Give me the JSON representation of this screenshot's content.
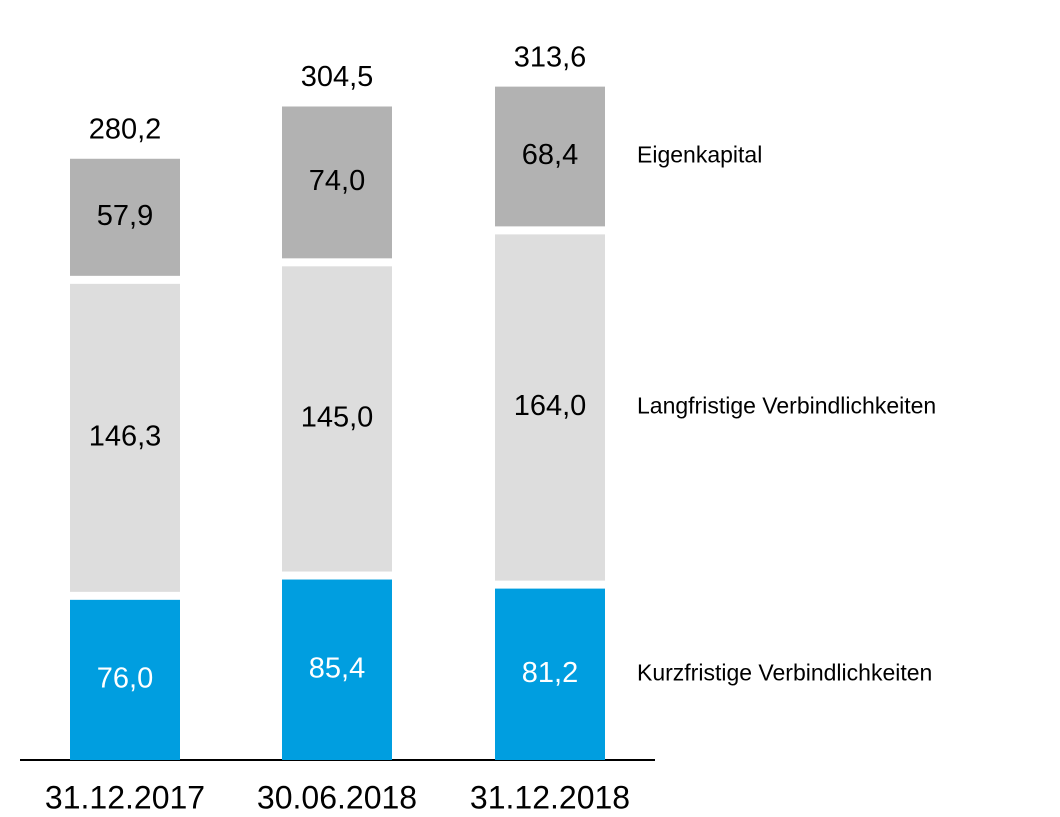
{
  "chart_data": {
    "type": "stacked_bar",
    "categories": [
      "31.12.2017",
      "30.06.2018",
      "31.12.2018"
    ],
    "series": [
      {
        "name": "Kurzfristige Verbindlichkeiten",
        "color": "#009ee0",
        "values": [
          76.0,
          85.4,
          81.2
        ],
        "value_labels": [
          "76,0",
          "85,4",
          "81,2"
        ]
      },
      {
        "name": "Langfristige Verbindlichkeiten",
        "color": "#dddddd",
        "values": [
          146.3,
          145.0,
          164.0
        ],
        "value_labels": [
          "146,3",
          "145,0",
          "164,0"
        ]
      },
      {
        "name": "Eigenkapital",
        "color": "#b2b2b2",
        "values": [
          57.9,
          74.0,
          68.4
        ],
        "value_labels": [
          "57,9",
          "74,0",
          "68,4"
        ]
      }
    ],
    "totals": [
      280.2,
      304.5,
      313.6
    ],
    "total_labels": [
      "280,2",
      "304,5",
      "313,6"
    ]
  }
}
